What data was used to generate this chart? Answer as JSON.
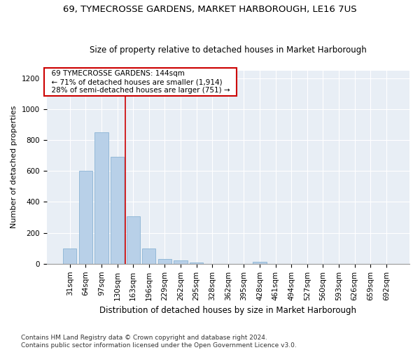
{
  "title": "69, TYMECROSSE GARDENS, MARKET HARBOROUGH, LE16 7US",
  "subtitle": "Size of property relative to detached houses in Market Harborough",
  "xlabel": "Distribution of detached houses by size in Market Harborough",
  "ylabel": "Number of detached properties",
  "categories": [
    "31sqm",
    "64sqm",
    "97sqm",
    "130sqm",
    "163sqm",
    "196sqm",
    "229sqm",
    "262sqm",
    "295sqm",
    "328sqm",
    "362sqm",
    "395sqm",
    "428sqm",
    "461sqm",
    "494sqm",
    "527sqm",
    "560sqm",
    "593sqm",
    "626sqm",
    "659sqm",
    "692sqm"
  ],
  "values": [
    100,
    600,
    850,
    690,
    305,
    100,
    30,
    22,
    10,
    0,
    0,
    0,
    12,
    0,
    0,
    0,
    0,
    0,
    0,
    0,
    0
  ],
  "bar_color": "#b8d0e8",
  "bar_edgecolor": "#8ab4d4",
  "background_color": "#ffffff",
  "chart_bg_color": "#e8eef5",
  "grid_color": "#ffffff",
  "redline_x": 3.5,
  "annotation_text": "  69 TYMECROSSE GARDENS: 144sqm  \n  ← 71% of detached houses are smaller (1,914)  \n  28% of semi-detached houses are larger (751) →  ",
  "annotation_box_color": "#ffffff",
  "annotation_box_edgecolor": "#cc0000",
  "ylim": [
    0,
    1250
  ],
  "yticks": [
    0,
    200,
    400,
    600,
    800,
    1000,
    1200
  ],
  "footer": "Contains HM Land Registry data © Crown copyright and database right 2024.\nContains public sector information licensed under the Open Government Licence v3.0.",
  "title_fontsize": 9.5,
  "subtitle_fontsize": 8.5,
  "xlabel_fontsize": 8.5,
  "ylabel_fontsize": 8,
  "annotation_fontsize": 7.5,
  "footer_fontsize": 6.5,
  "tick_fontsize": 7.5
}
